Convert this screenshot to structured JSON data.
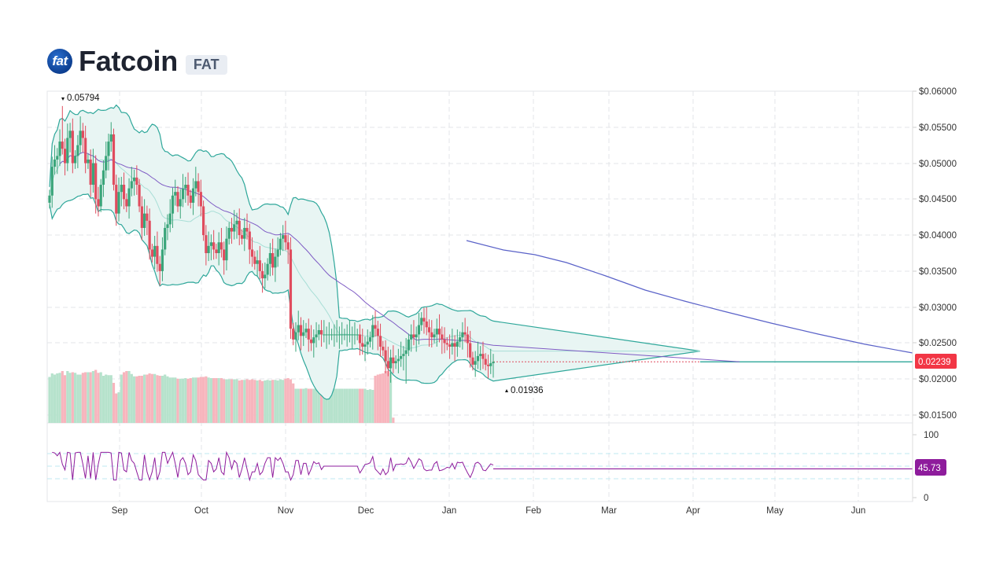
{
  "header": {
    "logo_text": "fat",
    "title": "Fatcoin",
    "symbol": "FAT"
  },
  "colors": {
    "up": "#3aa57a",
    "down": "#e04c5e",
    "up_volume": "#b6e2cc",
    "down_volume": "#f7b5bd",
    "bollinger": "#2ea79a",
    "bollinger_fill": "#e8f5f3",
    "bollinger_mid": "#a8ded6",
    "ma_short": "#7e5bc4",
    "ma_long": "#5a62c8",
    "rsi": "#8e1c9c",
    "price_badge": "#f23645",
    "rsi_badge": "#8e1c9c",
    "grid": "#e3e5e8"
  },
  "chart_data": {
    "type": "candlestick",
    "title": "Fatcoin (FAT)",
    "y_axis": {
      "ticks": [
        "$0.06000",
        "$0.05500",
        "$0.05000",
        "$0.04500",
        "$0.04000",
        "$0.03500",
        "$0.03000",
        "$0.02500",
        "$0.02000",
        "$0.01500"
      ],
      "range": [
        0.015,
        0.06
      ]
    },
    "x_axis": {
      "ticks": [
        "Sep",
        "Oct",
        "Nov",
        "Dec",
        "Jan",
        "Feb",
        "Mar",
        "Apr",
        "May",
        "Jun"
      ]
    },
    "annotations": {
      "high": "0.05794",
      "low": "0.01936",
      "last_price": "0.02239"
    },
    "rsi": {
      "ticks": [
        "100",
        "0"
      ],
      "last_value": "45.73",
      "bands": [
        70,
        50,
        30
      ]
    },
    "close_series": [
      0.0455,
      0.0495,
      0.0505,
      0.051,
      0.053,
      0.052,
      0.05,
      0.0535,
      0.0545,
      0.05,
      0.051,
      0.0525,
      0.0545,
      0.0535,
      0.05,
      0.0505,
      0.047,
      0.05,
      0.045,
      0.044,
      0.047,
      0.049,
      0.051,
      0.053,
      0.054,
      0.047,
      0.043,
      0.046,
      0.047,
      0.045,
      0.044,
      0.0465,
      0.0475,
      0.048,
      0.047,
      0.044,
      0.041,
      0.043,
      0.042,
      0.038,
      0.037,
      0.0385,
      0.036,
      0.035,
      0.038,
      0.041,
      0.0415,
      0.043,
      0.0455,
      0.046,
      0.044,
      0.045,
      0.0465,
      0.047,
      0.0455,
      0.0445,
      0.0465,
      0.0475,
      0.046,
      0.044,
      0.04,
      0.0375,
      0.0385,
      0.039,
      0.038,
      0.0375,
      0.039,
      0.038,
      0.0365,
      0.0395,
      0.041,
      0.0405,
      0.0415,
      0.042,
      0.04,
      0.0395,
      0.041,
      0.0405,
      0.038,
      0.037,
      0.036,
      0.0365,
      0.035,
      0.034,
      0.0345,
      0.036,
      0.0375,
      0.0355,
      0.037,
      0.038,
      0.0395,
      0.04,
      0.039,
      0.038,
      0.027,
      0.0255,
      0.0265,
      0.0275,
      0.026,
      0.0265,
      0.027,
      0.0255,
      0.025,
      0.0258,
      0.0262,
      0.0268,
      0.0262,
      0.0262,
      0.0262,
      0.0262,
      0.0262,
      0.0262,
      0.0262,
      0.0262,
      0.0262,
      0.0262,
      0.0262,
      0.0262,
      0.0262,
      0.0262,
      0.0262,
      0.025,
      0.0245,
      0.0248,
      0.0252,
      0.0258,
      0.0275,
      0.027,
      0.026,
      0.0245,
      0.024,
      0.0225,
      0.0215,
      0.023,
      0.0222,
      0.0225,
      0.0228,
      0.0232,
      0.0235,
      0.024,
      0.0255,
      0.0262,
      0.0258,
      0.0262,
      0.0275,
      0.0285,
      0.028,
      0.0272,
      0.0265,
      0.0258,
      0.0262,
      0.027,
      0.0262,
      0.0255,
      0.025,
      0.0248,
      0.0245,
      0.025,
      0.0245,
      0.0252,
      0.0258,
      0.0265,
      0.0262,
      0.025,
      0.023,
      0.022,
      0.0225,
      0.0232,
      0.0235,
      0.0228,
      0.022,
      0.0218,
      0.0222,
      0.0224
    ],
    "volume_series": [
      0.78,
      0.84,
      0.82,
      0.84,
      0.85,
      0.88,
      0.81,
      0.88,
      0.85,
      0.86,
      0.85,
      0.82,
      0.82,
      0.85,
      0.86,
      0.86,
      0.86,
      0.88,
      0.9,
      0.85,
      0.86,
      0.8,
      0.82,
      0.81,
      0.81,
      0.68,
      0.5,
      0.52,
      0.82,
      0.86,
      0.88,
      0.88,
      0.83,
      0.79,
      0.79,
      0.8,
      0.8,
      0.82,
      0.82,
      0.84,
      0.83,
      0.83,
      0.81,
      0.8,
      0.8,
      0.82,
      0.79,
      0.77,
      0.77,
      0.77,
      0.75,
      0.75,
      0.75,
      0.76,
      0.75,
      0.76,
      0.77,
      0.77,
      0.77,
      0.78,
      0.78,
      0.79,
      0.77,
      0.76,
      0.76,
      0.76,
      0.76,
      0.76,
      0.74,
      0.74,
      0.74,
      0.74,
      0.74,
      0.74,
      0.72,
      0.73,
      0.73,
      0.74,
      0.73,
      0.74,
      0.73,
      0.72,
      0.73,
      0.71,
      0.72,
      0.73,
      0.72,
      0.73,
      0.73,
      0.72,
      0.74,
      0.73,
      0.75,
      0.76,
      0.74,
      0.67,
      0.58,
      0.58,
      0.58,
      0.58,
      0.59,
      0.58,
      0.58,
      0.58,
      0.58,
      0.59,
      0.58,
      0.58,
      0.58,
      0.58,
      0.58,
      0.58,
      0.58,
      0.58,
      0.58,
      0.58,
      0.58,
      0.58,
      0.58,
      0.58,
      0.58,
      0.58,
      0.58,
      0.58,
      0.56,
      0.57,
      0.56,
      0.8,
      0.82,
      0.83,
      0.84,
      0.88,
      0.88,
      0.86,
      0.09,
      0.0,
      0.0,
      0.0,
      0.0,
      0.0,
      0.0,
      0.0,
      0.0,
      0.0,
      0.0,
      0.0,
      0.0,
      0.0,
      0.0,
      0.0,
      0.0,
      0.0,
      0.0,
      0.0,
      0.0,
      0.0,
      0.0,
      0.0,
      0.0,
      0.0,
      0.0,
      0.0,
      0.0,
      0.0,
      0.0,
      0.0,
      0.0,
      0.0,
      0.0,
      0.0,
      0.0,
      0.0,
      0.0,
      0.0,
      0.0,
      0.0,
      0.0
    ]
  }
}
